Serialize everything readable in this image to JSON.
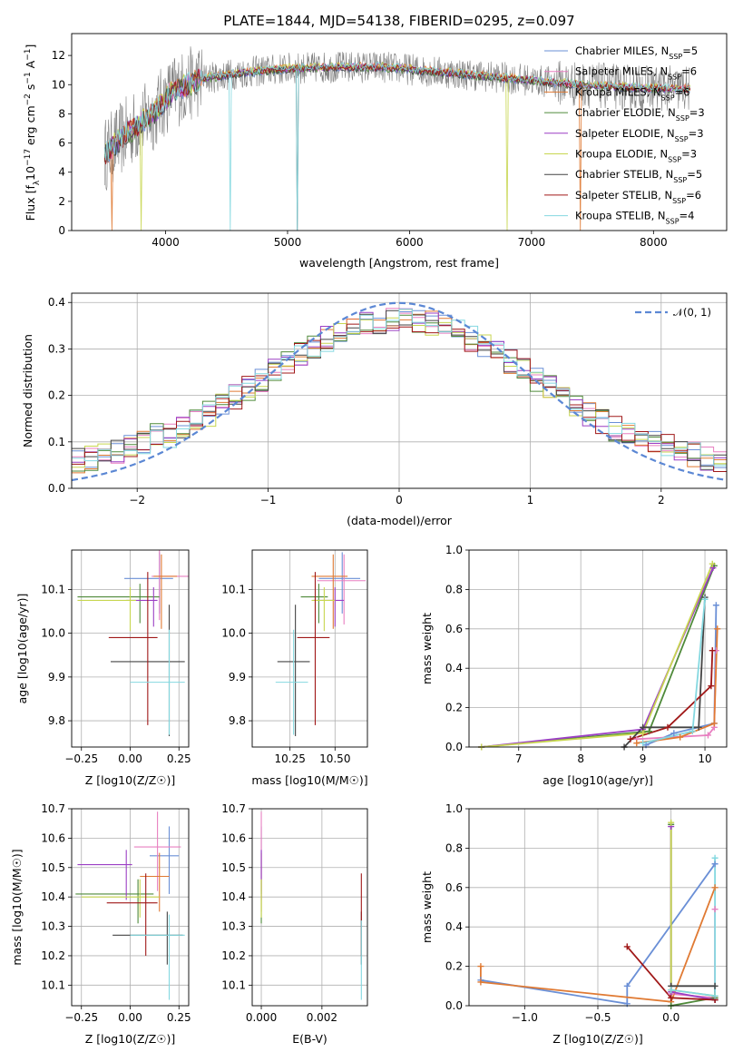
{
  "figure": {
    "title": "PLATE=1844, MJD=54138, FIBERID=0295, z=0.097"
  },
  "colors": {
    "axes": "#000000",
    "grid": "#b0b0b0",
    "series": [
      "#6a8fd6",
      "#e87fc0",
      "#e07a33",
      "#4f8a3a",
      "#9b3fc4",
      "#c8d650",
      "#444444",
      "#a01818",
      "#84d8e0"
    ],
    "flux_noise": "#808080",
    "gauss": "#5b87d4"
  },
  "legend_spectrum": [
    {
      "label": "Chabrier MILES, N",
      "sub": "SSP",
      "suffix": "=5"
    },
    {
      "label": "Salpeter MILES, N",
      "sub": "SSP",
      "suffix": "=6"
    },
    {
      "label": "Kroupa MILES, N",
      "sub": "SSP",
      "suffix": "=6"
    },
    {
      "label": "Chabrier ELODIE, N",
      "sub": "SSP",
      "suffix": "=3"
    },
    {
      "label": "Salpeter ELODIE, N",
      "sub": "SSP",
      "suffix": "=3"
    },
    {
      "label": "Kroupa ELODIE, N",
      "sub": "SSP",
      "suffix": "=3"
    },
    {
      "label": "Chabrier STELIB, N",
      "sub": "SSP",
      "suffix": "=5"
    },
    {
      "label": "Salpeter STELIB, N",
      "sub": "SSP",
      "suffix": "=6"
    },
    {
      "label": "Kroupa STELIB, N",
      "sub": "SSP",
      "suffix": "=4"
    }
  ],
  "legend_gauss": "𝒩(0, 1)",
  "chart_data": [
    {
      "id": "spectrum",
      "type": "line",
      "xlabel": "wavelength [Angstrom, rest frame]",
      "ylabel": "Flux [f_λ10^−17 erg cm^−2 s^−1 A^−1]",
      "xlim": [
        3230,
        8600
      ],
      "ylim": [
        0,
        13.5
      ],
      "xticks": [
        4000,
        5000,
        6000,
        7000,
        8000
      ],
      "yticks": [
        0,
        2,
        4,
        6,
        8,
        10,
        12
      ],
      "grid": false,
      "legend": "upper right",
      "x_range_data": [
        3500,
        8300
      ],
      "continuum": [
        [
          3500,
          5.2
        ],
        [
          3700,
          6.8
        ],
        [
          3900,
          8.0
        ],
        [
          4050,
          9.5
        ],
        [
          4300,
          10.4
        ],
        [
          4600,
          10.8
        ],
        [
          5000,
          11.1
        ],
        [
          5400,
          11.2
        ],
        [
          5800,
          11.2
        ],
        [
          6200,
          10.9
        ],
        [
          6600,
          10.6
        ],
        [
          7000,
          10.3
        ],
        [
          7400,
          10.0
        ],
        [
          7800,
          9.8
        ],
        [
          8300,
          9.7
        ]
      ]
    },
    {
      "id": "residual_hist",
      "type": "line",
      "xlabel": "(data-model)/error",
      "ylabel": "Normed distribution",
      "xlim": [
        -2.5,
        2.5
      ],
      "ylim": [
        0,
        0.42
      ],
      "xticks": [
        -2,
        -1,
        0,
        1,
        2
      ],
      "yticks": [
        0.0,
        0.1,
        0.2,
        0.3,
        0.4
      ],
      "grid": true,
      "legend": "upper right",
      "reference_curve": "normal(0,1)"
    },
    {
      "id": "age_vs_Z",
      "type": "scatter",
      "xlabel": "Z [log10(Z/Z☉)]",
      "ylabel": "age [log10(age/yr)]",
      "xlim": [
        -0.3,
        0.3
      ],
      "ylim": [
        9.74,
        10.19
      ],
      "xticks": [
        -0.25,
        0.0,
        0.25
      ],
      "yticks": [
        9.8,
        9.9,
        10.0,
        10.1
      ],
      "grid": true,
      "points": [
        {
          "x": 0.15,
          "y": 10.125,
          "xerr": [
            0.18,
            0.07
          ],
          "yerr": [
            0.08,
            0.06
          ]
        },
        {
          "x": 0.15,
          "y": 10.13,
          "xerr": [
            0.04,
            0.16
          ],
          "yerr": [
            0.1,
            0.06
          ]
        },
        {
          "x": 0.16,
          "y": 10.13,
          "xerr": [
            0.04,
            0.08
          ],
          "yerr": [
            0.12,
            0.05
          ]
        },
        {
          "x": 0.05,
          "y": 10.083,
          "xerr": [
            0.32,
            0.1
          ],
          "yerr": [
            0.06,
            0.03
          ]
        },
        {
          "x": 0.12,
          "y": 10.075,
          "xerr": [
            0.14,
            0.02
          ],
          "yerr": [
            0.06,
            0.03
          ]
        },
        {
          "x": 0.0,
          "y": 10.075,
          "xerr": [
            0.27,
            0.03
          ],
          "yerr": [
            0.07,
            0.03
          ]
        },
        {
          "x": 0.2,
          "y": 9.935,
          "xerr": [
            0.3,
            0.08
          ],
          "yerr": [
            0.17,
            0.13
          ]
        },
        {
          "x": 0.09,
          "y": 9.99,
          "xerr": [
            0.2,
            0.05
          ],
          "yerr": [
            0.2,
            0.15
          ]
        },
        {
          "x": 0.2,
          "y": 9.888,
          "xerr": [
            0.2,
            0.08
          ],
          "yerr": [
            0.12,
            0.12
          ]
        }
      ]
    },
    {
      "id": "age_vs_mass",
      "type": "scatter",
      "xlabel": "mass [log10(M/M☉)]",
      "ylabel": "",
      "xlim": [
        10.04,
        10.68
      ],
      "ylim": [
        9.74,
        10.19
      ],
      "xticks": [
        10.25,
        10.5
      ],
      "yticks": [
        9.8,
        9.9,
        10.0,
        10.1
      ],
      "grid": true,
      "points": [
        {
          "x": 10.54,
          "y": 10.125,
          "xerr": [
            0.13,
            0.1
          ],
          "yerr": [
            0.08,
            0.06
          ]
        },
        {
          "x": 10.55,
          "y": 10.12,
          "xerr": [
            0.15,
            0.12
          ],
          "yerr": [
            0.1,
            0.06
          ]
        },
        {
          "x": 10.49,
          "y": 10.13,
          "xerr": [
            0.12,
            0.08
          ],
          "yerr": [
            0.12,
            0.05
          ]
        },
        {
          "x": 10.41,
          "y": 10.083,
          "xerr": [
            0.1,
            0.05
          ],
          "yerr": [
            0.06,
            0.03
          ]
        },
        {
          "x": 10.5,
          "y": 10.075,
          "xerr": [
            0.12,
            0.05
          ],
          "yerr": [
            0.06,
            0.03
          ]
        },
        {
          "x": 10.44,
          "y": 10.075,
          "xerr": [
            0.07,
            0.06
          ],
          "yerr": [
            0.07,
            0.03
          ]
        },
        {
          "x": 10.28,
          "y": 9.935,
          "xerr": [
            0.1,
            0.08
          ],
          "yerr": [
            0.17,
            0.13
          ]
        },
        {
          "x": 10.39,
          "y": 9.99,
          "xerr": [
            0.1,
            0.08
          ],
          "yerr": [
            0.2,
            0.15
          ]
        },
        {
          "x": 10.27,
          "y": 9.888,
          "xerr": [
            0.1,
            0.08
          ],
          "yerr": [
            0.12,
            0.12
          ]
        }
      ]
    },
    {
      "id": "weight_vs_age",
      "type": "line",
      "xlabel": "age [log10(age/yr)]",
      "ylabel": "mass weight",
      "xlim": [
        6.2,
        10.35
      ],
      "ylim": [
        0,
        1.0
      ],
      "xticks": [
        7,
        8,
        9,
        10
      ],
      "yticks": [
        0.0,
        0.2,
        0.4,
        0.6,
        0.8,
        1.0
      ],
      "grid": true,
      "series": [
        {
          "points": [
            [
              9.05,
              0.01
            ],
            [
              9.5,
              0.07
            ],
            [
              10.15,
              0.12
            ],
            [
              10.18,
              0.72
            ]
          ]
        },
        {
          "points": [
            [
              8.9,
              0.04
            ],
            [
              10.05,
              0.06
            ],
            [
              10.15,
              0.1
            ],
            [
              10.18,
              0.49
            ]
          ]
        },
        {
          "points": [
            [
              8.9,
              0.02
            ],
            [
              9.6,
              0.05
            ],
            [
              10.15,
              0.12
            ],
            [
              10.2,
              0.6
            ]
          ]
        },
        {
          "points": [
            [
              6.4,
              0.0
            ],
            [
              9.1,
              0.08
            ],
            [
              10.15,
              0.92
            ]
          ]
        },
        {
          "points": [
            [
              6.4,
              0.0
            ],
            [
              9.0,
              0.09
            ],
            [
              10.13,
              0.91
            ]
          ]
        },
        {
          "points": [
            [
              6.4,
              0.0
            ],
            [
              9.0,
              0.07
            ],
            [
              10.12,
              0.93
            ]
          ]
        },
        {
          "points": [
            [
              8.7,
              0.0
            ],
            [
              9.0,
              0.1
            ],
            [
              9.9,
              0.1
            ],
            [
              10.0,
              0.76
            ]
          ]
        },
        {
          "points": [
            [
              8.8,
              0.04
            ],
            [
              9.4,
              0.1
            ],
            [
              10.1,
              0.31
            ],
            [
              10.12,
              0.49
            ]
          ]
        },
        {
          "points": [
            [
              9.0,
              0.02
            ],
            [
              9.8,
              0.08
            ],
            [
              10.0,
              0.75
            ]
          ]
        }
      ]
    },
    {
      "id": "mass_vs_Z",
      "type": "scatter",
      "xlabel": "Z [log10(Z/Z☉)]",
      "ylabel": "mass [log10(M/M☉)]",
      "xlim": [
        -0.3,
        0.3
      ],
      "ylim": [
        10.03,
        10.7
      ],
      "xticks": [
        -0.25,
        0.0,
        0.25
      ],
      "yticks": [
        10.1,
        10.2,
        10.3,
        10.4,
        10.5,
        10.6,
        10.7
      ],
      "grid": true,
      "points": [
        {
          "x": 0.2,
          "y": 10.54,
          "xerr": [
            0.1,
            0.05
          ],
          "yerr": [
            0.13,
            0.1
          ]
        },
        {
          "x": 0.14,
          "y": 10.57,
          "xerr": [
            0.12,
            0.12
          ],
          "yerr": [
            0.15,
            0.12
          ]
        },
        {
          "x": 0.15,
          "y": 10.47,
          "xerr": [
            0.1,
            0.05
          ],
          "yerr": [
            0.12,
            0.08
          ]
        },
        {
          "x": 0.04,
          "y": 10.41,
          "xerr": [
            0.32,
            0.08
          ],
          "yerr": [
            0.1,
            0.05
          ]
        },
        {
          "x": -0.02,
          "y": 10.51,
          "xerr": [
            0.25,
            0.03
          ],
          "yerr": [
            0.12,
            0.05
          ]
        },
        {
          "x": 0.05,
          "y": 10.4,
          "xerr": [
            0.3,
            0.1
          ],
          "yerr": [
            0.07,
            0.06
          ]
        },
        {
          "x": 0.19,
          "y": 10.27,
          "xerr": [
            0.28,
            0.08
          ],
          "yerr": [
            0.1,
            0.08
          ]
        },
        {
          "x": 0.08,
          "y": 10.38,
          "xerr": [
            0.2,
            0.06
          ],
          "yerr": [
            0.18,
            0.1
          ]
        },
        {
          "x": 0.2,
          "y": 10.27,
          "xerr": [
            0.2,
            0.08
          ],
          "yerr": [
            0.22,
            0.07
          ]
        }
      ]
    },
    {
      "id": "mass_vs_ebv",
      "type": "scatter",
      "xlabel": "E(B-V)",
      "ylabel": "",
      "xlim": [
        -0.0003,
        0.0035
      ],
      "ylim": [
        10.03,
        10.7
      ],
      "xticks": [
        0.0,
        0.002
      ],
      "yticks": [
        10.1,
        10.2,
        10.3,
        10.4,
        10.5,
        10.6,
        10.7
      ],
      "grid": true,
      "points": [
        {
          "x": 0.0,
          "y": 10.54,
          "yerr": [
            0.13,
            0.1
          ]
        },
        {
          "x": 0.0,
          "y": 10.57,
          "yerr": [
            0.15,
            0.12
          ]
        },
        {
          "x": 0.0,
          "y": 10.47,
          "yerr": [
            0.12,
            0.08
          ]
        },
        {
          "x": 0.0,
          "y": 10.41,
          "yerr": [
            0.1,
            0.05
          ]
        },
        {
          "x": 0.0,
          "y": 10.51,
          "yerr": [
            0.12,
            0.05
          ]
        },
        {
          "x": 0.0,
          "y": 10.4,
          "yerr": [
            0.07,
            0.06
          ]
        },
        {
          "x": 0.0033,
          "y": 10.27,
          "yerr": [
            0.1,
            0.08
          ]
        },
        {
          "x": 0.0033,
          "y": 10.38,
          "yerr": [
            0.18,
            0.1
          ]
        },
        {
          "x": 0.0033,
          "y": 10.2,
          "yerr": [
            0.15,
            0.12
          ]
        }
      ]
    },
    {
      "id": "weight_vs_Z",
      "type": "line",
      "xlabel": "Z [log10(Z/Z☉)]",
      "ylabel": "mass weight",
      "xlim": [
        -1.38,
        0.38
      ],
      "ylim": [
        0,
        1.0
      ],
      "xticks": [
        -1.0,
        -0.5,
        0.0
      ],
      "yticks": [
        0.0,
        0.2,
        0.4,
        0.6,
        0.8,
        1.0
      ],
      "grid": true,
      "series": [
        {
          "points": [
            [
              -1.3,
              0.13
            ],
            [
              -0.3,
              0.01
            ],
            [
              -0.3,
              0.1
            ],
            [
              0.3,
              0.72
            ]
          ]
        },
        {
          "points": [
            [
              0.0,
              0.06
            ],
            [
              0.3,
              0.04
            ],
            [
              0.3,
              0.49
            ]
          ]
        },
        {
          "points": [
            [
              -1.3,
              0.2
            ],
            [
              -1.3,
              0.12
            ],
            [
              0.0,
              0.02
            ],
            [
              0.3,
              0.6
            ]
          ]
        },
        {
          "points": [
            [
              0.0,
              0.92
            ],
            [
              0.0,
              0.0
            ],
            [
              0.3,
              0.04
            ]
          ]
        },
        {
          "points": [
            [
              0.0,
              0.91
            ],
            [
              0.0,
              0.07
            ],
            [
              0.3,
              0.03
            ]
          ]
        },
        {
          "points": [
            [
              0.0,
              0.93
            ],
            [
              0.0,
              0.08
            ],
            [
              0.3,
              0.05
            ]
          ]
        },
        {
          "points": [
            [
              0.0,
              0.1
            ],
            [
              0.3,
              0.1
            ],
            [
              0.3,
              0.03
            ]
          ]
        },
        {
          "points": [
            [
              -0.3,
              0.3
            ],
            [
              0.0,
              0.04
            ],
            [
              0.3,
              0.03
            ]
          ]
        },
        {
          "points": [
            [
              0.0,
              0.08
            ],
            [
              0.3,
              0.05
            ],
            [
              0.3,
              0.75
            ]
          ]
        }
      ]
    }
  ]
}
